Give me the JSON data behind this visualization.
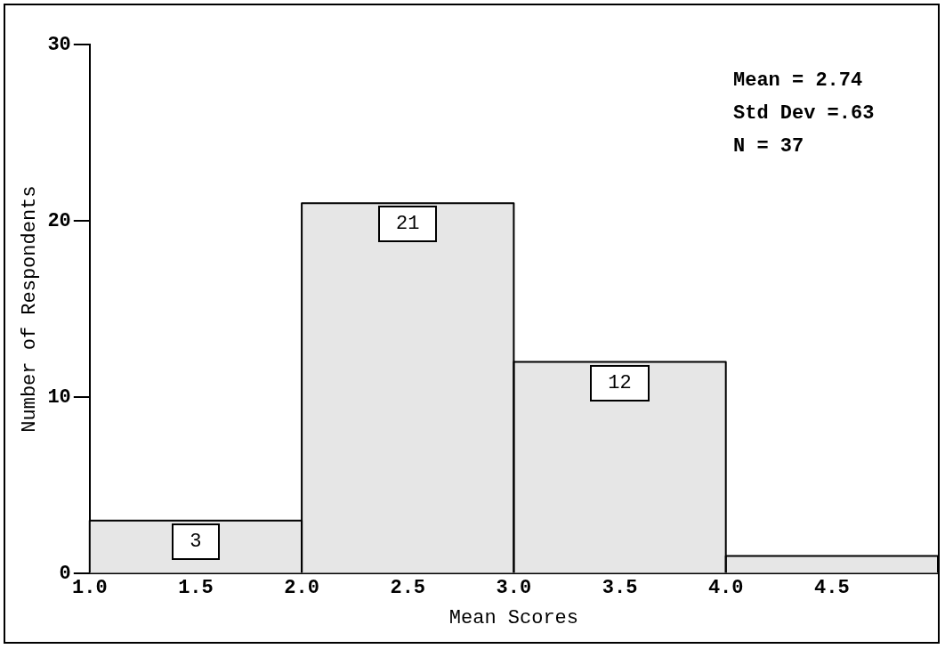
{
  "chart_data": {
    "type": "histogram",
    "bins": [
      1,
      2,
      3,
      4,
      5
    ],
    "values": [
      3,
      21,
      12,
      1
    ],
    "value_labels": [
      "3",
      "21",
      "12",
      null
    ],
    "color": "#e6e6e6",
    "xlabel": "Mean Scores",
    "ylabel": "Number of Respondents",
    "xlim": [
      1,
      5
    ],
    "xticks": [
      {
        "value": 1,
        "label": "1.0"
      },
      {
        "value": 1.5,
        "label": "1.5"
      },
      {
        "value": 2,
        "label": "2.0"
      },
      {
        "value": 2.5,
        "label": "2.5"
      },
      {
        "value": 3,
        "label": "3.0"
      },
      {
        "value": 3.5,
        "label": "3.5"
      },
      {
        "value": 4,
        "label": "4.0"
      },
      {
        "value": 4.5,
        "label": "4.5"
      }
    ],
    "ylim": [
      0,
      30
    ],
    "yticks": [
      0,
      10,
      20,
      30
    ],
    "grid": false,
    "legend": false,
    "annotations": [
      "Mean = 2.74",
      "Std Dev =.63",
      "N = 37"
    ]
  }
}
